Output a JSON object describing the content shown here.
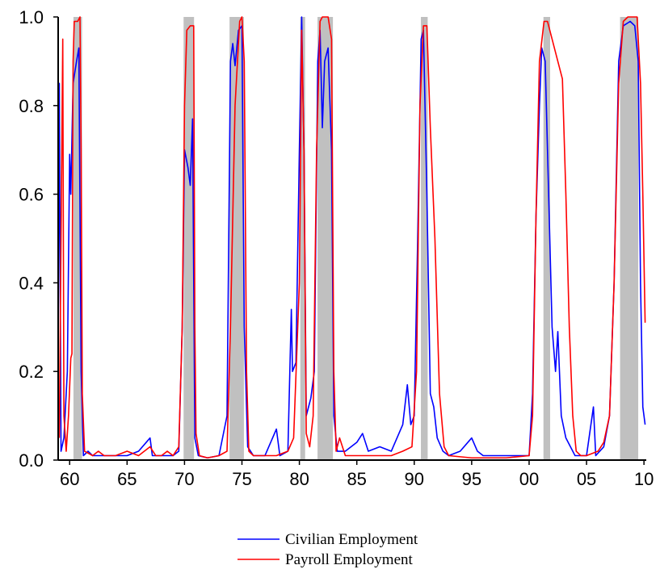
{
  "chart_data": {
    "type": "line",
    "xlim": [
      1959,
      2010.2
    ],
    "ylim": [
      0,
      1
    ],
    "xticks": [
      {
        "value": 1960,
        "label": "60"
      },
      {
        "value": 1965,
        "label": "65"
      },
      {
        "value": 1970,
        "label": "70"
      },
      {
        "value": 1975,
        "label": "75"
      },
      {
        "value": 1980,
        "label": "80"
      },
      {
        "value": 1985,
        "label": "85"
      },
      {
        "value": 1990,
        "label": "90"
      },
      {
        "value": 1995,
        "label": "95"
      },
      {
        "value": 2000,
        "label": "00"
      },
      {
        "value": 2005,
        "label": "05"
      },
      {
        "value": 2010,
        "label": "10"
      }
    ],
    "yticks": [
      {
        "value": 0,
        "label": "0.0"
      },
      {
        "value": 0.2,
        "label": "0.2"
      },
      {
        "value": 0.4,
        "label": "0.4"
      },
      {
        "value": 0.6,
        "label": "0.6"
      },
      {
        "value": 0.8,
        "label": "0.8"
      },
      {
        "value": 1,
        "label": "1.0"
      }
    ],
    "shaded_regions": [
      [
        1960.33,
        1961.08
      ],
      [
        1969.92,
        1970.83
      ],
      [
        1973.92,
        1975.17
      ],
      [
        1980.08,
        1980.5
      ],
      [
        1981.58,
        1982.92
      ],
      [
        1990.58,
        1991.17
      ],
      [
        2001.25,
        2001.83
      ],
      [
        2007.92,
        2009.5
      ]
    ],
    "shade_color": "#c0c0c0",
    "series": [
      {
        "name": "Civilian Employment",
        "color": "#0000ff",
        "x": [
          1959.0,
          1959.1,
          1959.25,
          1959.5,
          1959.8,
          1960.0,
          1960.1,
          1960.3,
          1960.6,
          1960.8,
          1961.0,
          1961.2,
          1961.6,
          1962,
          1963,
          1964,
          1965,
          1966,
          1967,
          1967.2,
          1968,
          1969,
          1969.5,
          1969.8,
          1970.0,
          1970.3,
          1970.5,
          1970.7,
          1970.9,
          1971.2,
          1972,
          1973,
          1973.7,
          1974.0,
          1974.2,
          1974.4,
          1974.7,
          1975.0,
          1975.2,
          1975.5,
          1976,
          1977,
          1978,
          1978.3,
          1979.0,
          1979.3,
          1979.4,
          1979.7,
          1980.0,
          1980.2,
          1980.4,
          1980.6,
          1981.0,
          1981.3,
          1981.6,
          1981.8,
          1982.0,
          1982.2,
          1982.5,
          1982.8,
          1983.0,
          1983.3,
          1984,
          1985,
          1985.5,
          1986,
          1987,
          1988,
          1989,
          1989.4,
          1989.7,
          1990.0,
          1990.3,
          1990.6,
          1990.8,
          1991.1,
          1991.4,
          1991.7,
          1992.0,
          1992.5,
          1993,
          1994,
          1995,
          1995.5,
          1996,
          1998,
          1999,
          2000,
          2000.3,
          2000.6,
          2000.9,
          2001.1,
          2001.4,
          2001.7,
          2002.0,
          2002.3,
          2002.5,
          2002.8,
          2003.2,
          2003.6,
          2004,
          2005,
          2005.6,
          2005.8,
          2006.5,
          2007.0,
          2007.4,
          2007.8,
          2008.2,
          2008.8,
          2009.2,
          2009.5,
          2009.7,
          2009.9,
          2010.1
        ],
        "values": [
          0.2,
          0.85,
          0.02,
          0.05,
          0.2,
          0.69,
          0.6,
          0.85,
          0.9,
          0.93,
          0.2,
          0.01,
          0.02,
          0.01,
          0.01,
          0.01,
          0.01,
          0.02,
          0.05,
          0.01,
          0.01,
          0.01,
          0.02,
          0.3,
          0.7,
          0.66,
          0.62,
          0.77,
          0.05,
          0.01,
          0.005,
          0.01,
          0.1,
          0.9,
          0.94,
          0.89,
          0.97,
          0.98,
          0.3,
          0.03,
          0.01,
          0.01,
          0.07,
          0.01,
          0.02,
          0.34,
          0.2,
          0.22,
          0.7,
          1.0,
          0.7,
          0.1,
          0.14,
          0.2,
          0.9,
          0.97,
          0.75,
          0.9,
          0.93,
          0.7,
          0.1,
          0.02,
          0.02,
          0.04,
          0.06,
          0.02,
          0.03,
          0.02,
          0.08,
          0.17,
          0.08,
          0.1,
          0.5,
          0.95,
          0.97,
          0.6,
          0.15,
          0.12,
          0.05,
          0.02,
          0.01,
          0.02,
          0.05,
          0.02,
          0.01,
          0.01,
          0.01,
          0.01,
          0.15,
          0.55,
          0.8,
          0.93,
          0.9,
          0.6,
          0.3,
          0.2,
          0.29,
          0.1,
          0.05,
          0.03,
          0.01,
          0.01,
          0.12,
          0.01,
          0.03,
          0.1,
          0.4,
          0.9,
          0.98,
          0.99,
          0.98,
          0.9,
          0.4,
          0.12,
          0.08
        ]
      },
      {
        "name": "Payroll Employment",
        "color": "#ff0000",
        "x": [
          1959.1,
          1959.25,
          1959.4,
          1959.5,
          1959.7,
          1959.9,
          1960.1,
          1960.2,
          1960.3,
          1960.4,
          1960.7,
          1960.9,
          1961.0,
          1961.1,
          1961.3,
          1962,
          1962.5,
          1963,
          1964,
          1965,
          1966,
          1967,
          1967.5,
          1968,
          1968.5,
          1969,
          1969.5,
          1969.8,
          1970.0,
          1970.2,
          1970.5,
          1970.8,
          1970.9,
          1971.0,
          1971.3,
          1972,
          1973,
          1973.7,
          1974.0,
          1974.4,
          1974.8,
          1975.0,
          1975.2,
          1975.4,
          1975.6,
          1976,
          1977,
          1978,
          1979,
          1979.5,
          1980.0,
          1980.2,
          1980.4,
          1980.6,
          1980.9,
          1981.2,
          1981.5,
          1981.8,
          1982.0,
          1982.5,
          1982.8,
          1983.0,
          1983.2,
          1983.5,
          1984,
          1985,
          1986,
          1987,
          1988,
          1989,
          1989.8,
          1990.2,
          1990.5,
          1990.8,
          1991.1,
          1991.4,
          1991.8,
          1992.2,
          1992.6,
          1993,
          1995,
          1998,
          2000,
          2000.3,
          2000.6,
          2000.9,
          2001.3,
          2001.6,
          2002.0,
          2002.5,
          2002.9,
          2003.2,
          2003.5,
          2003.8,
          2004.1,
          2004.5,
          2005,
          2006,
          2006.5,
          2007.0,
          2007.4,
          2007.8,
          2008.2,
          2008.6,
          2009.0,
          2009.4,
          2009.7,
          2009.9,
          2010.1
        ],
        "values": [
          0.05,
          0.5,
          0.95,
          0.1,
          0.02,
          0.1,
          0.23,
          0.24,
          0.9,
          0.99,
          0.99,
          1.0,
          0.7,
          0.15,
          0.02,
          0.01,
          0.02,
          0.01,
          0.01,
          0.02,
          0.01,
          0.03,
          0.01,
          0.01,
          0.02,
          0.01,
          0.03,
          0.3,
          0.8,
          0.97,
          0.98,
          0.98,
          0.3,
          0.06,
          0.01,
          0.005,
          0.01,
          0.02,
          0.3,
          0.8,
          0.99,
          1.0,
          0.9,
          0.2,
          0.02,
          0.01,
          0.01,
          0.01,
          0.02,
          0.05,
          0.4,
          0.97,
          0.7,
          0.06,
          0.03,
          0.1,
          0.7,
          0.99,
          1.0,
          1.0,
          0.95,
          0.2,
          0.02,
          0.05,
          0.01,
          0.01,
          0.01,
          0.01,
          0.01,
          0.02,
          0.03,
          0.2,
          0.8,
          0.98,
          0.98,
          0.75,
          0.5,
          0.15,
          0.03,
          0.01,
          0.005,
          0.005,
          0.01,
          0.1,
          0.55,
          0.9,
          0.99,
          0.99,
          0.95,
          0.9,
          0.86,
          0.6,
          0.3,
          0.1,
          0.02,
          0.01,
          0.01,
          0.02,
          0.04,
          0.1,
          0.4,
          0.85,
          0.99,
          1.0,
          1.0,
          1.0,
          0.85,
          0.6,
          0.31
        ]
      }
    ]
  }
}
